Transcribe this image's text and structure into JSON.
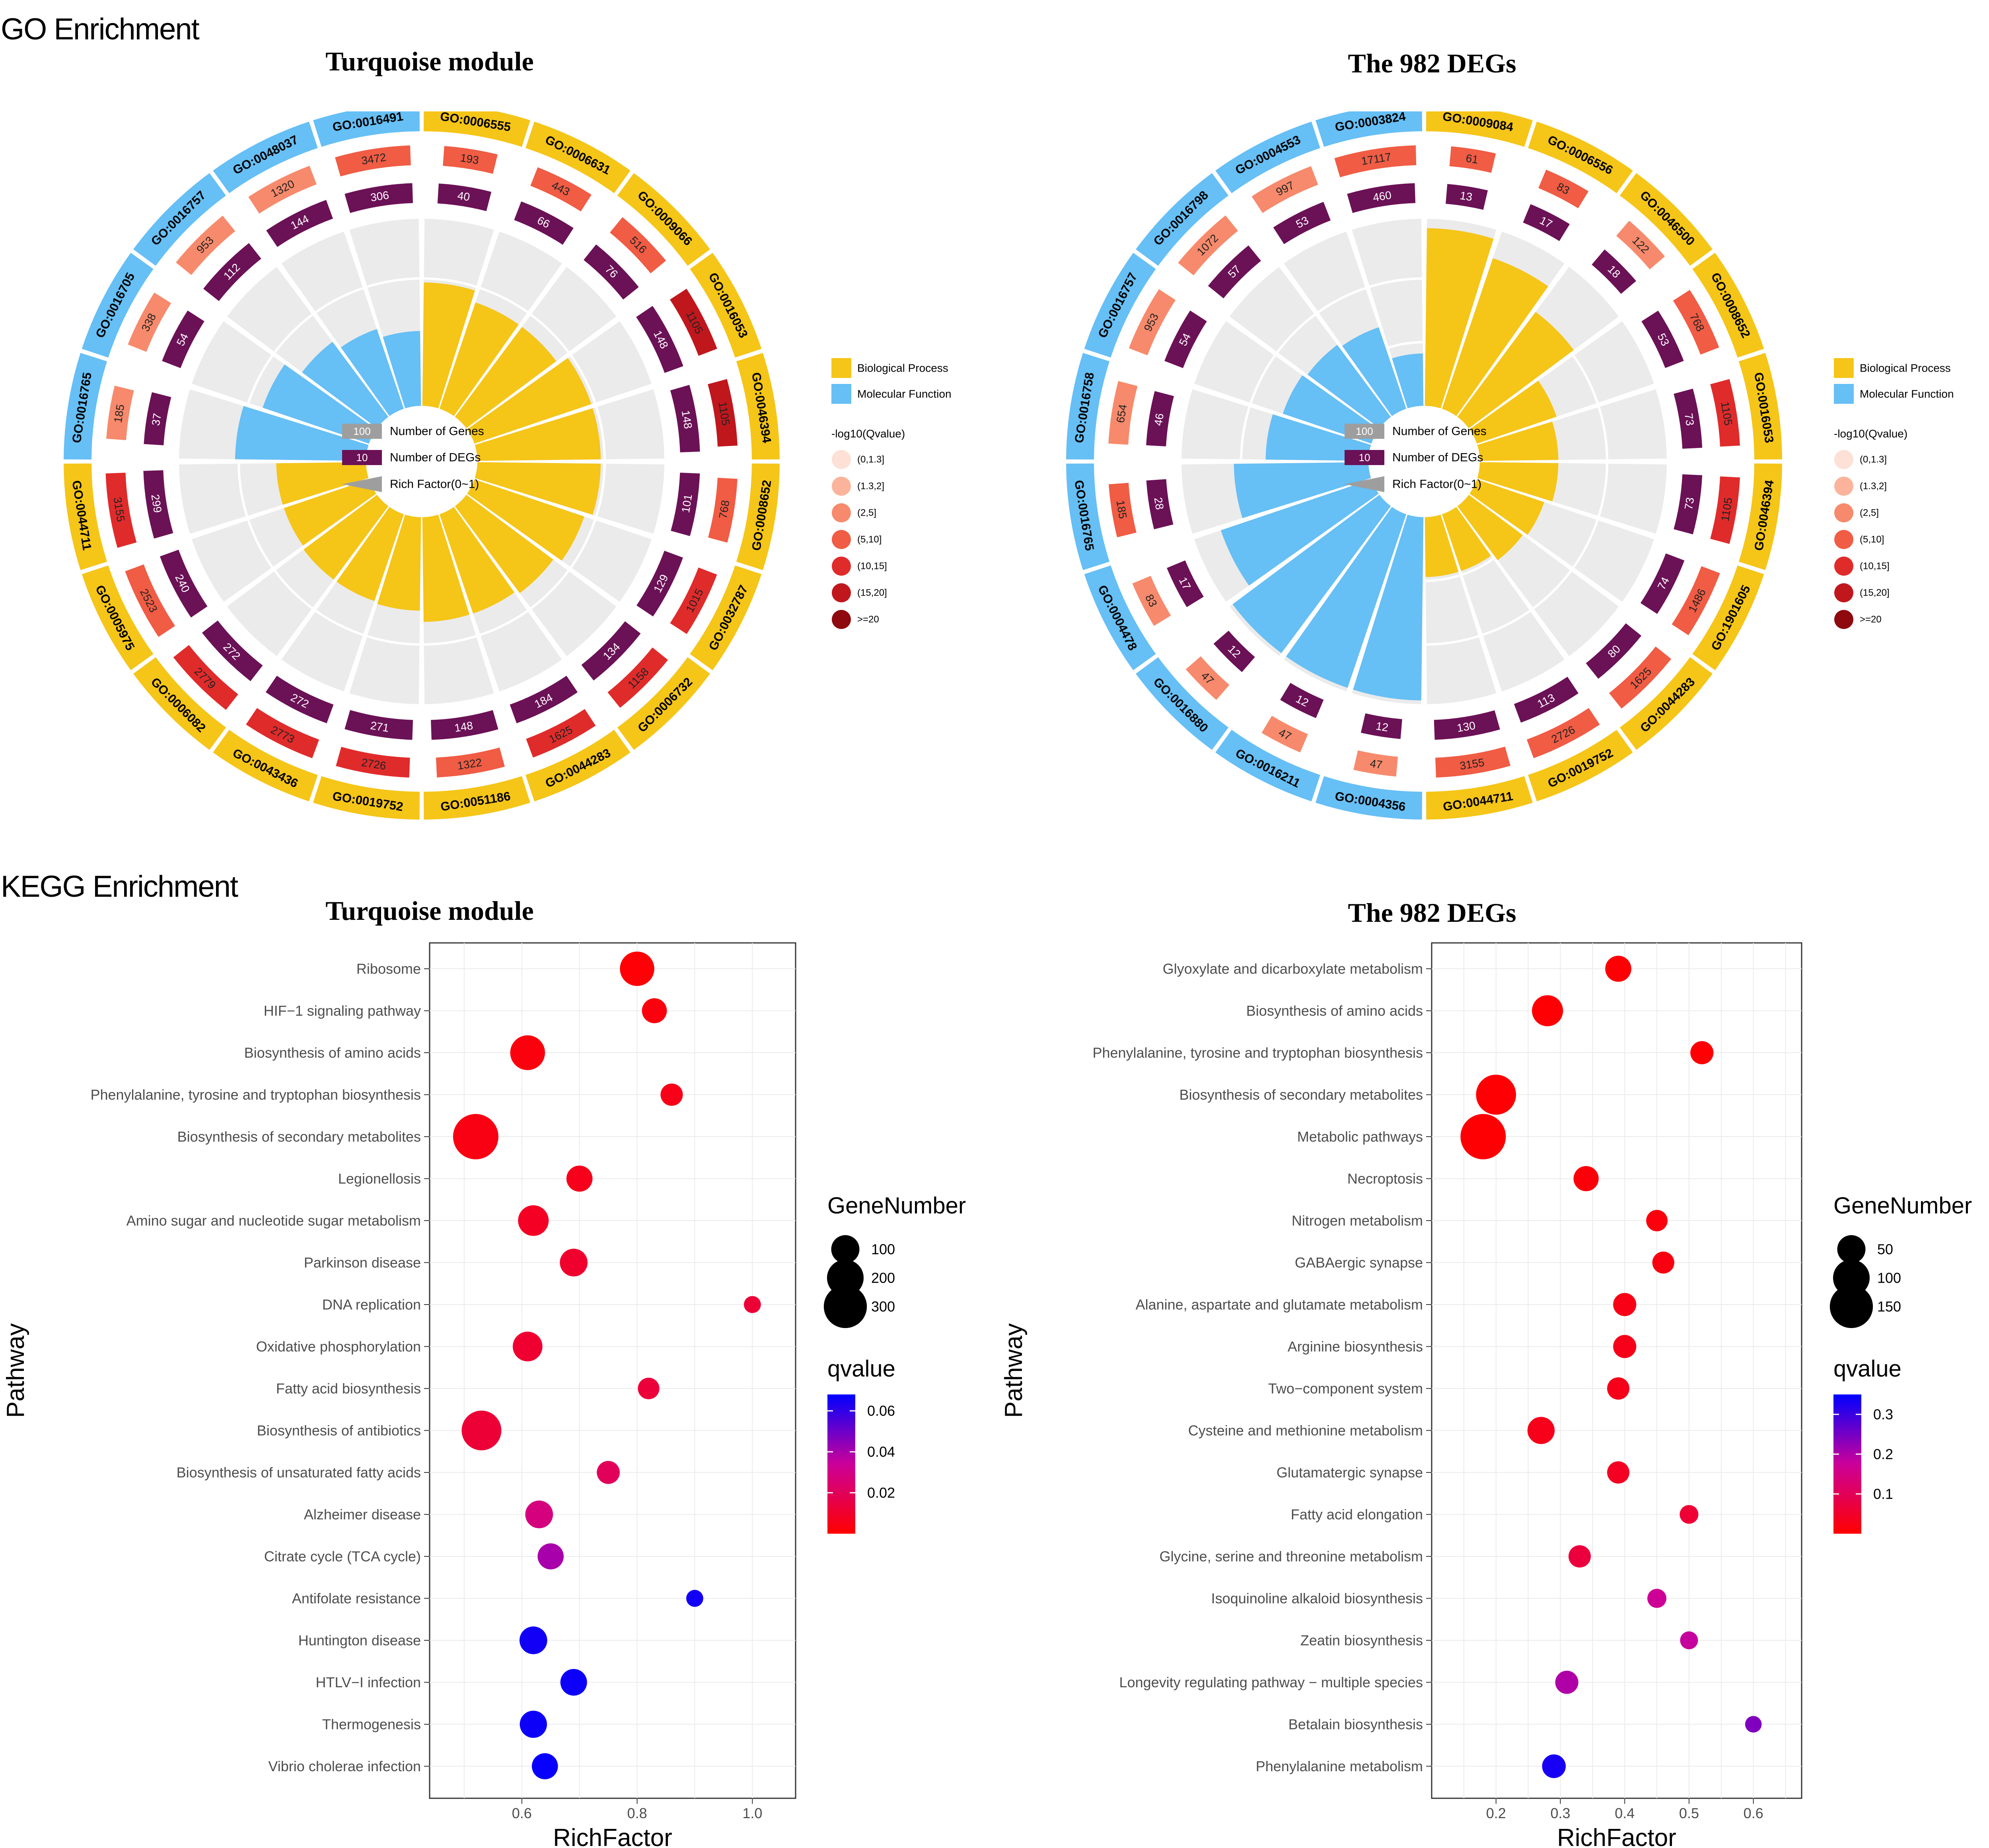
{
  "section_labels": {
    "go": "GO Enrichment",
    "kegg": "KEGG Enrichment"
  },
  "colors": {
    "biological_process": "#F5C518",
    "molecular_function": "#66BFF5",
    "degs": "#6B1156",
    "genes_scale": [
      "#FDE0D6",
      "#FBB49B",
      "#F78A6C",
      "#F05C44",
      "#E02B2B",
      "#C0171D",
      "#8E0A0E"
    ],
    "panel_bg": "#EBEBEB",
    "grid": "#FFFFFF",
    "q_low": "#FF0000",
    "q_mid": "#CC0099",
    "q_high": "#0000FF"
  },
  "go_legend": {
    "category_items": [
      "Biological Process",
      "Molecular Function"
    ],
    "key_items": [
      {
        "sample": "100",
        "label": "Number of Genes"
      },
      {
        "sample": "10",
        "label": "Number of DEGs"
      },
      {
        "sample": "",
        "label": "Rich Factor(0~1)"
      }
    ],
    "qvalue_title": "-log10(Qvalue)",
    "qvalue_bins": [
      "(0,1.3]",
      "(1.3,2]",
      "(2,5]",
      "(5,10]",
      "(10,15]",
      "(15,20]",
      ">=20"
    ]
  },
  "chart_data": [
    {
      "type": "circular_go",
      "title": "Turquoise module",
      "terms": [
        {
          "id": "GO:0006555",
          "category": "BP",
          "genes": 193,
          "degs": 40,
          "rich": 0.66,
          "qbin": 3
        },
        {
          "id": "GO:0006631",
          "category": "BP",
          "genes": 443,
          "degs": 66,
          "rich": 0.6,
          "qbin": 3
        },
        {
          "id": "GO:0009066",
          "category": "BP",
          "genes": 516,
          "degs": 76,
          "rich": 0.6,
          "qbin": 3
        },
        {
          "id": "GO:0016053",
          "category": "BP",
          "genes": 1105,
          "degs": 148,
          "rich": 0.66,
          "qbin": 5
        },
        {
          "id": "GO:0046394",
          "category": "BP",
          "genes": 1105,
          "degs": 148,
          "rich": 0.66,
          "qbin": 5
        },
        {
          "id": "GO:0008652",
          "category": "BP",
          "genes": 768,
          "degs": 101,
          "rich": 0.66,
          "qbin": 3
        },
        {
          "id": "GO:0032787",
          "category": "BP",
          "genes": 1015,
          "degs": 129,
          "rich": 0.62,
          "qbin": 4
        },
        {
          "id": "GO:0006732",
          "category": "BP",
          "genes": 1158,
          "degs": 134,
          "rich": 0.58,
          "qbin": 4
        },
        {
          "id": "GO:0044283",
          "category": "BP",
          "genes": 1625,
          "degs": 184,
          "rich": 0.56,
          "qbin": 4
        },
        {
          "id": "GO:0051186",
          "category": "BP",
          "genes": 1322,
          "degs": 148,
          "rich": 0.56,
          "qbin": 3
        },
        {
          "id": "GO:0019752",
          "category": "BP",
          "genes": 2726,
          "degs": 271,
          "rich": 0.5,
          "qbin": 4
        },
        {
          "id": "GO:0043436",
          "category": "BP",
          "genes": 2773,
          "degs": 272,
          "rich": 0.49,
          "qbin": 4
        },
        {
          "id": "GO:0006082",
          "category": "BP",
          "genes": 2779,
          "degs": 272,
          "rich": 0.49,
          "qbin": 4
        },
        {
          "id": "GO:0005975",
          "category": "BP",
          "genes": 2523,
          "degs": 240,
          "rich": 0.48,
          "qbin": 3
        },
        {
          "id": "GO:0044711",
          "category": "BP",
          "genes": 3155,
          "degs": 299,
          "rich": 0.48,
          "qbin": 4
        },
        {
          "id": "GO:0016765",
          "category": "MF",
          "genes": 185,
          "degs": 37,
          "rich": 0.7,
          "qbin": 2
        },
        {
          "id": "GO:0016705",
          "category": "MF",
          "genes": 338,
          "degs": 54,
          "rich": 0.6,
          "qbin": 2
        },
        {
          "id": "GO:0016757",
          "category": "MF",
          "genes": 953,
          "degs": 112,
          "rich": 0.5,
          "qbin": 2
        },
        {
          "id": "GO:0048037",
          "category": "MF",
          "genes": 1320,
          "degs": 144,
          "rich": 0.45,
          "qbin": 2
        },
        {
          "id": "GO:0016491",
          "category": "MF",
          "genes": 3472,
          "degs": 306,
          "rich": 0.4,
          "qbin": 3
        }
      ]
    },
    {
      "type": "circular_go",
      "title": "The 982 DEGs",
      "terms": [
        {
          "id": "GO:0009084",
          "category": "BP",
          "genes": 61,
          "degs": 13,
          "rich": 0.95,
          "qbin": 3
        },
        {
          "id": "GO:0006556",
          "category": "BP",
          "genes": 83,
          "degs": 17,
          "rich": 0.85,
          "qbin": 3
        },
        {
          "id": "GO:0046500",
          "category": "BP",
          "genes": 122,
          "degs": 18,
          "rich": 0.7,
          "qbin": 2
        },
        {
          "id": "GO:0008652",
          "category": "BP",
          "genes": 768,
          "degs": 53,
          "rich": 0.45,
          "qbin": 3
        },
        {
          "id": "GO:0016053",
          "category": "BP",
          "genes": 1105,
          "degs": 73,
          "rich": 0.42,
          "qbin": 4
        },
        {
          "id": "GO:0046394",
          "category": "BP",
          "genes": 1105,
          "degs": 73,
          "rich": 0.42,
          "qbin": 4
        },
        {
          "id": "GO:1901605",
          "category": "BP",
          "genes": 1486,
          "degs": 74,
          "rich": 0.38,
          "qbin": 3
        },
        {
          "id": "GO:0044283",
          "category": "BP",
          "genes": 1625,
          "degs": 80,
          "rich": 0.36,
          "qbin": 3
        },
        {
          "id": "GO:0019752",
          "category": "BP",
          "genes": 2726,
          "degs": 113,
          "rich": 0.32,
          "qbin": 3
        },
        {
          "id": "GO:0044711",
          "category": "BP",
          "genes": 3155,
          "degs": 130,
          "rich": 0.32,
          "qbin": 3
        },
        {
          "id": "GO:0004356",
          "category": "MF",
          "genes": 47,
          "degs": 12,
          "rich": 0.98,
          "qbin": 2
        },
        {
          "id": "GO:0016211",
          "category": "MF",
          "genes": 47,
          "degs": 12,
          "rich": 0.98,
          "qbin": 2
        },
        {
          "id": "GO:0016880",
          "category": "MF",
          "genes": 47,
          "degs": 12,
          "rich": 0.98,
          "qbin": 2
        },
        {
          "id": "GO:0004478",
          "category": "MF",
          "genes": 83,
          "degs": 17,
          "rich": 0.85,
          "qbin": 2
        },
        {
          "id": "GO:0016765",
          "category": "MF",
          "genes": 185,
          "degs": 28,
          "rich": 0.72,
          "qbin": 3
        },
        {
          "id": "GO:0016758",
          "category": "MF",
          "genes": 654,
          "degs": 46,
          "rich": 0.55,
          "qbin": 2
        },
        {
          "id": "GO:0016757",
          "category": "MF",
          "genes": 953,
          "degs": 54,
          "rich": 0.5,
          "qbin": 2
        },
        {
          "id": "GO:0016798",
          "category": "MF",
          "genes": 1072,
          "degs": 57,
          "rich": 0.48,
          "qbin": 2
        },
        {
          "id": "GO:0004553",
          "category": "MF",
          "genes": 997,
          "degs": 53,
          "rich": 0.46,
          "qbin": 2
        },
        {
          "id": "GO:0003824",
          "category": "MF",
          "genes": 17117,
          "degs": 460,
          "rich": 0.28,
          "qbin": 3
        }
      ]
    },
    {
      "type": "scatter",
      "title": "Turquoise module",
      "xlabel": "RichFactor",
      "ylabel": "Pathway",
      "xlim": [
        0.44,
        1.075
      ],
      "xticks": [
        0.6,
        0.8,
        1.0
      ],
      "xtick_labels": [
        "0.6",
        "0.8",
        "1.0"
      ],
      "size_title": "GeneNumber",
      "size_legend": [
        100,
        200,
        300
      ],
      "size_max": 340,
      "color_title": "qvalue",
      "qrange": [
        0,
        0.068
      ],
      "color_ticks": [
        0.02,
        0.04,
        0.06
      ],
      "color_tick_labels": [
        "0.02",
        "0.04",
        "0.06"
      ],
      "points": [
        {
          "pathway": "Ribosome",
          "rich": 0.8,
          "genes": 170,
          "q": 0.001
        },
        {
          "pathway": "HIF−1 signaling pathway",
          "rich": 0.83,
          "genes": 70,
          "q": 0.003
        },
        {
          "pathway": "Biosynthesis of amino acids",
          "rich": 0.61,
          "genes": 175,
          "q": 0.003
        },
        {
          "pathway": "Phenylalanine, tyrosine and tryptophan biosynthesis",
          "rich": 0.86,
          "genes": 50,
          "q": 0.005
        },
        {
          "pathway": "Biosynthesis of secondary metabolites",
          "rich": 0.52,
          "genes": 340,
          "q": 0.004
        },
        {
          "pathway": "Legionellosis",
          "rich": 0.7,
          "genes": 80,
          "q": 0.006
        },
        {
          "pathway": "Amino sugar and nucleotide sugar metabolism",
          "rich": 0.62,
          "genes": 125,
          "q": 0.008
        },
        {
          "pathway": "Parkinson disease",
          "rich": 0.69,
          "genes": 95,
          "q": 0.01
        },
        {
          "pathway": "DNA replication",
          "rich": 1.0,
          "genes": 20,
          "q": 0.012
        },
        {
          "pathway": "Oxidative phosphorylation",
          "rich": 0.61,
          "genes": 115,
          "q": 0.011
        },
        {
          "pathway": "Fatty acid biosynthesis",
          "rich": 0.82,
          "genes": 45,
          "q": 0.013
        },
        {
          "pathway": "Biosynthesis of antibiotics",
          "rich": 0.53,
          "genes": 245,
          "q": 0.012
        },
        {
          "pathway": "Biosynthesis of unsaturated fatty acids",
          "rich": 0.75,
          "genes": 55,
          "q": 0.02
        },
        {
          "pathway": "Alzheimer disease",
          "rich": 0.63,
          "genes": 95,
          "q": 0.028
        },
        {
          "pathway": "Citrate cycle (TCA cycle)",
          "rich": 0.65,
          "genes": 80,
          "q": 0.04
        },
        {
          "pathway": "Antifolate resistance",
          "rich": 0.9,
          "genes": 20,
          "q": 0.065
        },
        {
          "pathway": "Huntington disease",
          "rich": 0.62,
          "genes": 95,
          "q": 0.065
        },
        {
          "pathway": "HTLV−I infection",
          "rich": 0.69,
          "genes": 85,
          "q": 0.066
        },
        {
          "pathway": "Thermogenesis",
          "rich": 0.62,
          "genes": 90,
          "q": 0.066
        },
        {
          "pathway": "Vibrio cholerae infection",
          "rich": 0.64,
          "genes": 80,
          "q": 0.067
        }
      ]
    },
    {
      "type": "scatter",
      "title": "The 982 DEGs",
      "xlabel": "RichFactor",
      "ylabel": "Pathway",
      "xlim": [
        0.1,
        0.675
      ],
      "xticks": [
        0.2,
        0.3,
        0.4,
        0.5,
        0.6
      ],
      "xtick_labels": [
        "0.2",
        "0.3",
        "0.4",
        "0.5",
        "0.6"
      ],
      "size_title": "GeneNumber",
      "size_legend": [
        50,
        100,
        150
      ],
      "size_max": 170,
      "color_title": "qvalue",
      "qrange": [
        0,
        0.35
      ],
      "color_ticks": [
        0.1,
        0.2,
        0.3
      ],
      "color_tick_labels": [
        "0.1",
        "0.2",
        "0.3"
      ],
      "points": [
        {
          "pathway": "Glyoxylate and dicarboxylate metabolism",
          "rich": 0.39,
          "genes": 40,
          "q": 0.005
        },
        {
          "pathway": "Biosynthesis of amino acids",
          "rich": 0.28,
          "genes": 65,
          "q": 0.005
        },
        {
          "pathway": "Phenylalanine, tyrosine and tryptophan biosynthesis",
          "rich": 0.52,
          "genes": 28,
          "q": 0.005
        },
        {
          "pathway": "Biosynthesis of secondary metabolites",
          "rich": 0.2,
          "genes": 125,
          "q": 0.005
        },
        {
          "pathway": "Metabolic pathways",
          "rich": 0.18,
          "genes": 170,
          "q": 0.005
        },
        {
          "pathway": "Necroptosis",
          "rich": 0.34,
          "genes": 36,
          "q": 0.01
        },
        {
          "pathway": "Nitrogen metabolism",
          "rich": 0.45,
          "genes": 22,
          "q": 0.015
        },
        {
          "pathway": "GABAergic synapse",
          "rich": 0.46,
          "genes": 24,
          "q": 0.02
        },
        {
          "pathway": "Alanine, aspartate and glutamate metabolism",
          "rich": 0.4,
          "genes": 28,
          "q": 0.025
        },
        {
          "pathway": "Arginine biosynthesis",
          "rich": 0.4,
          "genes": 28,
          "q": 0.03
        },
        {
          "pathway": "Two−component system",
          "rich": 0.39,
          "genes": 25,
          "q": 0.03
        },
        {
          "pathway": "Cysteine and methionine metabolism",
          "rich": 0.27,
          "genes": 45,
          "q": 0.03
        },
        {
          "pathway": "Glutamatergic synapse",
          "rich": 0.39,
          "genes": 25,
          "q": 0.04
        },
        {
          "pathway": "Fatty acid elongation",
          "rich": 0.5,
          "genes": 14,
          "q": 0.06
        },
        {
          "pathway": "Glycine, serine and threonine metabolism",
          "rich": 0.33,
          "genes": 25,
          "q": 0.07
        },
        {
          "pathway": "Isoquinoline alkaloid biosynthesis",
          "rich": 0.45,
          "genes": 15,
          "q": 0.17
        },
        {
          "pathway": "Zeatin biosynthesis",
          "rich": 0.5,
          "genes": 12,
          "q": 0.18
        },
        {
          "pathway": "Longevity regulating pathway − multiple species",
          "rich": 0.31,
          "genes": 28,
          "q": 0.2
        },
        {
          "pathway": "Betalain biosynthesis",
          "rich": 0.6,
          "genes": 9,
          "q": 0.24
        },
        {
          "pathway": "Phenylalanine metabolism",
          "rich": 0.29,
          "genes": 30,
          "q": 0.33
        }
      ]
    }
  ]
}
